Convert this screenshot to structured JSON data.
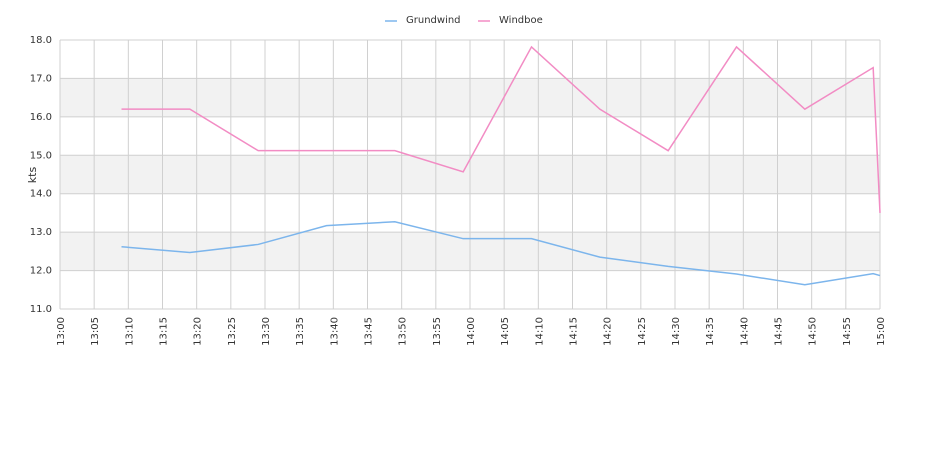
{
  "chart_data": {
    "type": "line",
    "y_label": "kts",
    "x": [
      "13:09",
      "13:19",
      "13:29",
      "13:39",
      "13:49",
      "13:59",
      "14:09",
      "14:19",
      "14:29",
      "14:39",
      "14:49",
      "14:59",
      "15:00"
    ],
    "series": [
      {
        "name": "Grundwind",
        "color": "#7cb5ec",
        "values": [
          12.62,
          12.47,
          12.68,
          13.17,
          13.27,
          12.83,
          12.83,
          12.35,
          12.11,
          11.91,
          11.63,
          11.92,
          11.87
        ]
      },
      {
        "name": "Windboe",
        "color": "#f28cc4",
        "values": [
          16.2,
          16.2,
          15.12,
          15.12,
          15.12,
          14.57,
          17.82,
          16.2,
          15.12,
          17.82,
          16.2,
          17.28,
          13.5
        ]
      }
    ],
    "xlim": [
      "13:00",
      "15:00"
    ],
    "xticks": [
      "13:00",
      "13:05",
      "13:10",
      "13:15",
      "13:20",
      "13:25",
      "13:30",
      "13:35",
      "13:40",
      "13:45",
      "13:50",
      "13:55",
      "14:00",
      "14:05",
      "14:10",
      "14:15",
      "14:20",
      "14:25",
      "14:30",
      "14:35",
      "14:40",
      "14:45",
      "14:50",
      "14:55",
      "15:00"
    ],
    "ylim": [
      11,
      18
    ],
    "yticks": [
      {
        "value": 11,
        "label": "11.0"
      },
      {
        "value": 12,
        "label": "12.0"
      },
      {
        "value": 13,
        "label": "13.0"
      },
      {
        "value": 14,
        "label": "14.0"
      },
      {
        "value": 15,
        "label": "15.0"
      },
      {
        "value": 16,
        "label": "16.0"
      },
      {
        "value": 17,
        "label": "17.0"
      },
      {
        "value": 18,
        "label": "18.0"
      }
    ],
    "grid": true,
    "legend": "top"
  }
}
